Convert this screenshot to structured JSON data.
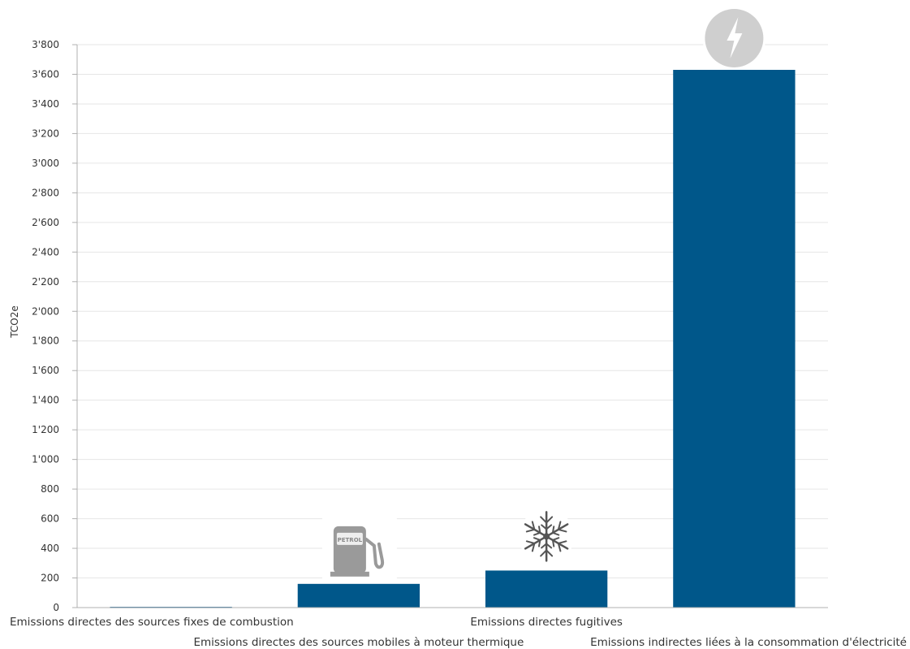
{
  "chart_data": {
    "type": "bar",
    "title": "",
    "xlabel": "",
    "ylabel": "TCO2e",
    "ylim": [
      0,
      3800
    ],
    "yticks": [
      0,
      200,
      400,
      600,
      800,
      1000,
      1200,
      1400,
      1600,
      1800,
      2000,
      2200,
      2400,
      2600,
      2800,
      3000,
      3200,
      3400,
      3600,
      3800
    ],
    "ytick_labels": [
      "0",
      "200",
      "400",
      "600",
      "800",
      "1'000",
      "1'200",
      "1'400",
      "1'600",
      "1'800",
      "2'000",
      "2'200",
      "2'400",
      "2'600",
      "2'800",
      "3'000",
      "3'200",
      "3'400",
      "3'600",
      "3'800"
    ],
    "categories": [
      "Emissions directes des sources fixes de combustion",
      "Emissions directes des sources mobiles à moteur thermique",
      "Emissions directes fugitives",
      "Emissions indirectes liées à la consommation d'électricité"
    ],
    "values": [
      5,
      160,
      250,
      3630
    ],
    "icons": [
      "",
      "fuel-pump-icon",
      "snowflake-icon",
      "lightning-icon"
    ],
    "icon_text": {
      "fuel_pump": "PETROL"
    },
    "grid": true,
    "legend": "none",
    "colors": {
      "bar": "#00578a",
      "grid": "#e6e6e6",
      "axis": "#b0b0b0",
      "icon_gray": "#9a9a9a",
      "icon_circle": "#cfcfcf"
    }
  }
}
